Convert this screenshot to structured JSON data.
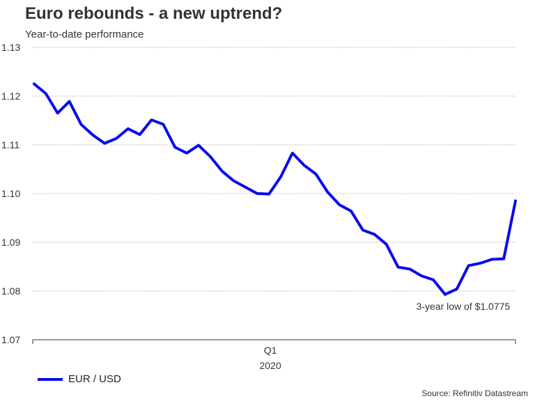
{
  "title": "Euro rebounds - a new uptrend?",
  "subtitle": "Year-to-date performance",
  "source": "Source: Refinitiv Datastream",
  "colors": {
    "series": "#0a0af0",
    "grid": "#bbbbbb",
    "axis": "#333333"
  },
  "chart_data": {
    "type": "line",
    "title": "Euro rebounds - a new uptrend?",
    "xlabel": "",
    "ylabel": "",
    "ylim": [
      1.07,
      1.13
    ],
    "yticks": [
      "1.13",
      "1.12",
      "1.11",
      "1.10",
      "1.09",
      "1.08",
      "1.07"
    ],
    "ytick_values": [
      1.13,
      1.12,
      1.11,
      1.1,
      1.09,
      1.08,
      1.07
    ],
    "xtick_label": "Q1",
    "xtick_year": "2020",
    "xtick_index": 20,
    "grid": true,
    "series": [
      {
        "name": "EUR / USD",
        "values": [
          1.1225,
          1.1205,
          1.1165,
          1.1189,
          1.1142,
          1.112,
          1.1103,
          1.1113,
          1.1133,
          1.1121,
          1.1151,
          1.1142,
          1.1095,
          1.1083,
          1.1099,
          1.1076,
          1.1046,
          1.1026,
          1.1013,
          1.1,
          1.0999,
          1.1034,
          1.1083,
          1.1058,
          1.104,
          1.1003,
          1.0977,
          1.0964,
          1.0925,
          1.0916,
          1.0896,
          1.0849,
          1.0845,
          1.0831,
          1.0823,
          1.0793,
          1.0804,
          1.0852,
          1.0857,
          1.0865,
          1.0866,
          1.0985
        ]
      }
    ],
    "annotation": {
      "text": "3-year low of $1.0775",
      "index": 35
    }
  }
}
